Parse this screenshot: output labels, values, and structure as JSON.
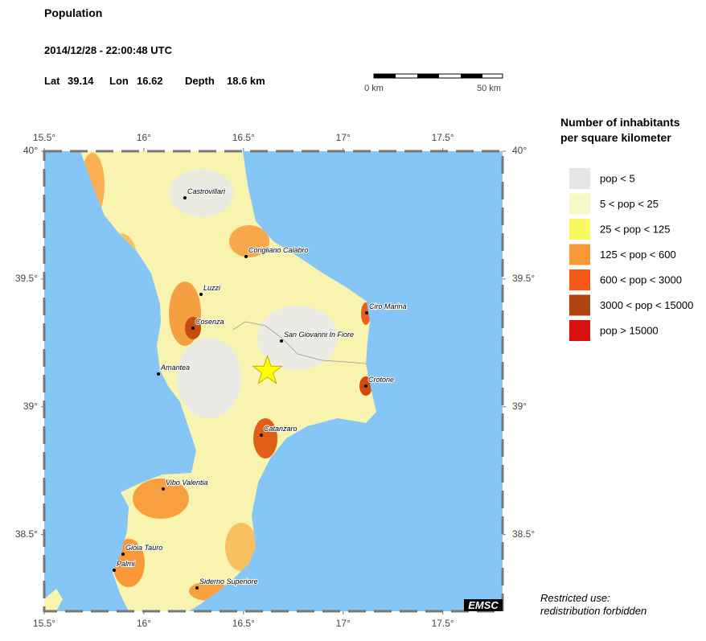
{
  "header": {
    "title": "Population",
    "datetime": "2014/12/28 - 22:00:48 UTC"
  },
  "epicenter": {
    "lat_label": "Lat",
    "lat": 39.14,
    "lon_label": "Lon",
    "lon": 16.62,
    "depth_label": "Depth",
    "depth": "18.6 km"
  },
  "scale_bar": {
    "start": "0 km",
    "end": "50 km"
  },
  "map": {
    "xlim": [
      15.5,
      17.8
    ],
    "ylim": [
      38.2,
      40
    ],
    "xticks": [
      {
        "value": 15.5,
        "label": "15.5°"
      },
      {
        "value": 16,
        "label": "16°"
      },
      {
        "value": 16.5,
        "label": "16.5°"
      },
      {
        "value": 17,
        "label": "17°"
      },
      {
        "value": 17.5,
        "label": "17.5°"
      }
    ],
    "yticks": [
      {
        "value": 40,
        "label": "40°"
      },
      {
        "value": 39.5,
        "label": "39.5°"
      },
      {
        "value": 39,
        "label": "39°"
      },
      {
        "value": 38.5,
        "label": "38.5°"
      }
    ],
    "sea_color": "#85c6f6",
    "cities": [
      "Castrovillari",
      "Corigliano Calabro",
      "Luzzi",
      "Cosenza",
      "San Giovanni In Fiore",
      "Ciro Marina",
      "Amantea",
      "Crotone",
      "Catanzaro",
      "Vibo Valentia",
      "Gioia Tauro",
      "Palmi",
      "Siderno Superiore"
    ],
    "logo": "EMSC"
  },
  "legend": {
    "title_lines": [
      "Number of inhabitants",
      "per square kilometer"
    ],
    "items": [
      {
        "label": "pop < 5",
        "color": "#e6e6e6"
      },
      {
        "label": "5 < pop < 25",
        "color": "#f8f8c8"
      },
      {
        "label": "25 < pop < 125",
        "color": "#f8f860"
      },
      {
        "label": "125 < pop < 600",
        "color": "#f89838"
      },
      {
        "label": "600 < pop < 3000",
        "color": "#f85818"
      },
      {
        "label": "3000 < pop < 15000",
        "color": "#b04410"
      },
      {
        "label": "pop > 15000",
        "color": "#d81010"
      }
    ]
  },
  "footer": {
    "notice_lines": [
      "Restricted use:",
      "redistribution forbidden"
    ]
  }
}
